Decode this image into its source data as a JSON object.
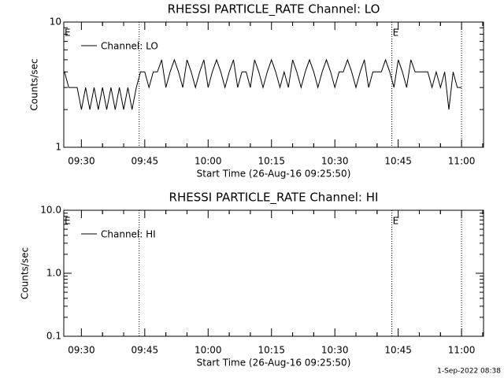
{
  "chart_data": [
    {
      "type": "line",
      "title": "RHESSI PARTICLE_RATE Channel: LO",
      "x_label": "Start Time (26-Aug-16 09:25:50)",
      "y_label": "Counts/sec",
      "y_scale": "log",
      "xlim": [
        565.83,
        665.2
      ],
      "ylim": [
        1,
        10
      ],
      "yticks": [
        1,
        10
      ],
      "xticks": [
        {
          "value": 570,
          "label": "09:30"
        },
        {
          "value": 585,
          "label": "09:45"
        },
        {
          "value": 600,
          "label": "10:00"
        },
        {
          "value": 615,
          "label": "10:15"
        },
        {
          "value": 630,
          "label": "10:30"
        },
        {
          "value": 645,
          "label": "10:45"
        },
        {
          "value": 660,
          "label": "11:00"
        }
      ],
      "vlines": [
        583.67,
        643.5,
        660
      ],
      "annotations": [
        {
          "text": "E",
          "x": 565.83
        },
        {
          "text": "E",
          "x": 643.5
        }
      ],
      "x": [
        566,
        567,
        568,
        569,
        570,
        571,
        572,
        573,
        574,
        575,
        576,
        577,
        578,
        579,
        580,
        581,
        582,
        583,
        584,
        585,
        586,
        587,
        588,
        589,
        590,
        591,
        592,
        593,
        594,
        595,
        596,
        597,
        598,
        599,
        600,
        601,
        602,
        603,
        604,
        605,
        606,
        607,
        608,
        609,
        610,
        611,
        612,
        613,
        614,
        615,
        616,
        617,
        618,
        619,
        620,
        621,
        622,
        623,
        624,
        625,
        626,
        627,
        628,
        629,
        630,
        631,
        632,
        633,
        634,
        635,
        636,
        637,
        638,
        639,
        640,
        641,
        642,
        643,
        644,
        645,
        646,
        647,
        648,
        649,
        650,
        651,
        652,
        653,
        654,
        655,
        656,
        657,
        658,
        659,
        660
      ],
      "series": [
        {
          "name": "Channel: LO",
          "color": "#000000",
          "values": [
            4,
            3,
            3,
            3,
            2,
            3,
            2,
            3,
            2,
            3,
            2,
            3,
            2,
            3,
            2,
            3,
            2,
            3,
            4,
            4,
            3,
            4,
            4,
            5,
            3,
            4,
            5,
            4,
            3,
            5,
            4,
            3,
            4,
            5,
            3,
            4,
            5,
            4,
            3,
            4,
            5,
            3,
            4,
            4,
            3,
            5,
            4,
            3,
            4,
            5,
            4,
            3,
            4,
            3,
            5,
            4,
            3,
            4,
            5,
            4,
            3,
            4,
            5,
            4,
            3,
            4,
            4,
            5,
            4,
            3,
            4,
            5,
            3,
            4,
            4,
            4,
            5,
            4,
            3,
            5,
            4,
            3,
            5,
            4,
            4,
            4,
            4,
            3,
            4,
            3,
            4,
            2,
            4,
            3,
            3
          ]
        }
      ]
    },
    {
      "type": "line",
      "title": "RHESSI PARTICLE_RATE Channel: HI",
      "x_label": "Start Time (26-Aug-16 09:25:50)",
      "y_label": "Counts/sec",
      "y_scale": "log",
      "xlim": [
        565.83,
        665.2
      ],
      "ylim": [
        0.1,
        10
      ],
      "yticks": [
        0.1,
        {
          "value": 1,
          "label": "1.0"
        },
        {
          "value": 10,
          "label": "10.0"
        }
      ],
      "xticks": [
        {
          "value": 570,
          "label": "09:30"
        },
        {
          "value": 585,
          "label": "09:45"
        },
        {
          "value": 600,
          "label": "10:00"
        },
        {
          "value": 615,
          "label": "10:15"
        },
        {
          "value": 630,
          "label": "10:30"
        },
        {
          "value": 645,
          "label": "10:45"
        },
        {
          "value": 660,
          "label": "11:00"
        }
      ],
      "vlines": [
        583.67,
        643.5,
        660
      ],
      "annotations": [
        {
          "text": "E",
          "x": 565.83
        },
        {
          "text": "E",
          "x": 643.5
        }
      ],
      "x": [],
      "series": [
        {
          "name": "Channel: HI",
          "color": "#000000",
          "values": []
        }
      ]
    }
  ],
  "footer": "1-Sep-2022 08:38"
}
